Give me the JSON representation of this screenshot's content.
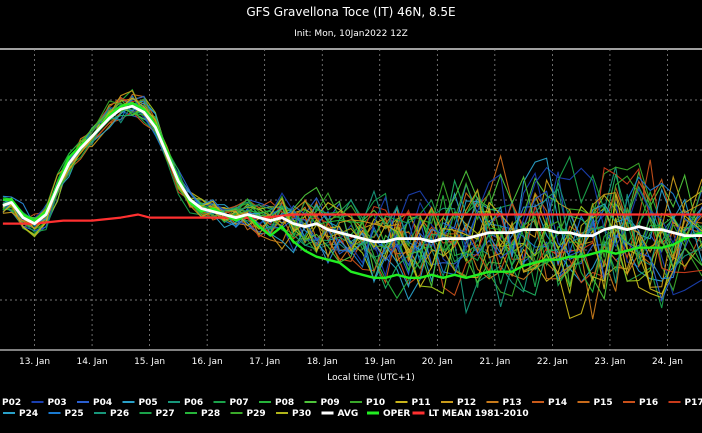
{
  "chart_data": {
    "type": "line",
    "title": "GFS Gravellona Toce (IT) 46N, 8.5E",
    "subtitle": "Init: Mon, 10Jan2022 12Z",
    "xlabel": "Local time (UTC+1)",
    "ylabel": "",
    "x_tick_labels": [
      "13. Jan",
      "14. Jan",
      "15. Jan",
      "16. Jan",
      "17. Jan",
      "18. Jan",
      "19. Jan",
      "20. Jan",
      "21. Jan",
      "22. Jan",
      "23. Jan",
      "24. Jan"
    ],
    "grid": true,
    "legend_position": "bottom",
    "legend_row1": [
      {
        "name": "P02",
        "color": "#1a3fb0"
      },
      {
        "name": "P03",
        "color": "#1a3fb0"
      },
      {
        "name": "P04",
        "color": "#2a5fd0"
      },
      {
        "name": "P05",
        "color": "#29a0c8"
      },
      {
        "name": "P06",
        "color": "#17967a"
      },
      {
        "name": "P07",
        "color": "#1aa24a"
      },
      {
        "name": "P08",
        "color": "#26b43a"
      },
      {
        "name": "P09",
        "color": "#4ec43a"
      },
      {
        "name": "P10",
        "color": "#3aa82a"
      },
      {
        "name": "P11",
        "color": "#c8b41a"
      },
      {
        "name": "P12",
        "color": "#c89a1a"
      },
      {
        "name": "P13",
        "color": "#c87a1a"
      },
      {
        "name": "P14",
        "color": "#c85a1a"
      },
      {
        "name": "P15",
        "color": "#c86a1a"
      },
      {
        "name": "P16",
        "color": "#c8501a"
      },
      {
        "name": "P17",
        "color": "#c83a1a"
      }
    ],
    "legend_row2": [
      {
        "name": "P24",
        "color": "#29a0c8"
      },
      {
        "name": "P25",
        "color": "#1a7ad0"
      },
      {
        "name": "P26",
        "color": "#17967a"
      },
      {
        "name": "P27",
        "color": "#1aa24a"
      },
      {
        "name": "P28",
        "color": "#26b43a"
      },
      {
        "name": "P29",
        "color": "#3aa82a"
      },
      {
        "name": "P30",
        "color": "#b0b41a"
      },
      {
        "name": "AVG",
        "color": "#ffffff"
      },
      {
        "name": "OPER",
        "color": "#22ee22"
      },
      {
        "name": "LT MEAN 1981-2010",
        "color": "#ff3030"
      }
    ],
    "x_range_days": [
      12.4,
      24.6
    ],
    "series": [
      {
        "name": "AVG",
        "color": "#ffffff",
        "width": 2.8,
        "values": [
          [
            12.45,
            0.48
          ],
          [
            12.6,
            0.49
          ],
          [
            12.8,
            0.44
          ],
          [
            13.0,
            0.42
          ],
          [
            13.2,
            0.45
          ],
          [
            13.4,
            0.54
          ],
          [
            13.6,
            0.62
          ],
          [
            13.8,
            0.67
          ],
          [
            14.0,
            0.71
          ],
          [
            14.3,
            0.77
          ],
          [
            14.5,
            0.8
          ],
          [
            14.7,
            0.81
          ],
          [
            14.9,
            0.79
          ],
          [
            15.1,
            0.74
          ],
          [
            15.3,
            0.65
          ],
          [
            15.5,
            0.56
          ],
          [
            15.7,
            0.5
          ],
          [
            15.9,
            0.47
          ],
          [
            16.1,
            0.46
          ],
          [
            16.3,
            0.45
          ],
          [
            16.5,
            0.44
          ],
          [
            16.7,
            0.45
          ],
          [
            16.9,
            0.44
          ],
          [
            17.1,
            0.43
          ],
          [
            17.3,
            0.44
          ],
          [
            17.5,
            0.42
          ],
          [
            17.7,
            0.41
          ],
          [
            17.9,
            0.42
          ],
          [
            18.1,
            0.4
          ],
          [
            18.3,
            0.39
          ],
          [
            18.5,
            0.38
          ],
          [
            18.7,
            0.37
          ],
          [
            18.9,
            0.36
          ],
          [
            19.1,
            0.36
          ],
          [
            19.3,
            0.37
          ],
          [
            19.5,
            0.37
          ],
          [
            19.7,
            0.37
          ],
          [
            19.9,
            0.36
          ],
          [
            20.1,
            0.37
          ],
          [
            20.3,
            0.37
          ],
          [
            20.5,
            0.37
          ],
          [
            20.7,
            0.38
          ],
          [
            20.9,
            0.39
          ],
          [
            21.1,
            0.39
          ],
          [
            21.3,
            0.39
          ],
          [
            21.5,
            0.4
          ],
          [
            21.7,
            0.4
          ],
          [
            21.9,
            0.4
          ],
          [
            22.1,
            0.39
          ],
          [
            22.3,
            0.39
          ],
          [
            22.5,
            0.38
          ],
          [
            22.7,
            0.38
          ],
          [
            22.9,
            0.4
          ],
          [
            23.1,
            0.41
          ],
          [
            23.3,
            0.4
          ],
          [
            23.5,
            0.41
          ],
          [
            23.7,
            0.4
          ],
          [
            23.9,
            0.4
          ],
          [
            24.1,
            0.39
          ],
          [
            24.3,
            0.38
          ],
          [
            24.6,
            0.38
          ]
        ]
      },
      {
        "name": "OPER",
        "color": "#22ee22",
        "width": 2.4,
        "values": [
          [
            12.45,
            0.5
          ],
          [
            12.6,
            0.5
          ],
          [
            12.8,
            0.45
          ],
          [
            13.0,
            0.43
          ],
          [
            13.2,
            0.46
          ],
          [
            13.4,
            0.55
          ],
          [
            13.6,
            0.64
          ],
          [
            13.8,
            0.68
          ],
          [
            14.0,
            0.71
          ],
          [
            14.3,
            0.78
          ],
          [
            14.5,
            0.81
          ],
          [
            14.7,
            0.82
          ],
          [
            14.9,
            0.8
          ],
          [
            15.1,
            0.75
          ],
          [
            15.3,
            0.66
          ],
          [
            15.5,
            0.57
          ],
          [
            15.7,
            0.49
          ],
          [
            15.9,
            0.46
          ],
          [
            16.1,
            0.47
          ],
          [
            16.3,
            0.45
          ],
          [
            16.5,
            0.43
          ],
          [
            16.7,
            0.45
          ],
          [
            16.9,
            0.41
          ],
          [
            17.1,
            0.38
          ],
          [
            17.3,
            0.41
          ],
          [
            17.5,
            0.36
          ],
          [
            17.7,
            0.33
          ],
          [
            17.9,
            0.31
          ],
          [
            18.1,
            0.3
          ],
          [
            18.3,
            0.29
          ],
          [
            18.5,
            0.26
          ],
          [
            18.7,
            0.25
          ],
          [
            18.9,
            0.24
          ],
          [
            19.1,
            0.24
          ],
          [
            19.3,
            0.25
          ],
          [
            19.5,
            0.24
          ],
          [
            19.7,
            0.24
          ],
          [
            19.9,
            0.25
          ],
          [
            20.1,
            0.24
          ],
          [
            20.3,
            0.25
          ],
          [
            20.5,
            0.24
          ],
          [
            20.7,
            0.25
          ],
          [
            20.9,
            0.26
          ],
          [
            21.1,
            0.26
          ],
          [
            21.3,
            0.26
          ],
          [
            21.5,
            0.28
          ],
          [
            21.7,
            0.29
          ],
          [
            21.9,
            0.3
          ],
          [
            22.1,
            0.3
          ],
          [
            22.3,
            0.31
          ],
          [
            22.5,
            0.31
          ],
          [
            22.7,
            0.32
          ],
          [
            22.9,
            0.33
          ],
          [
            23.1,
            0.32
          ],
          [
            23.3,
            0.33
          ],
          [
            23.5,
            0.34
          ],
          [
            23.7,
            0.34
          ],
          [
            23.9,
            0.34
          ],
          [
            24.1,
            0.35
          ],
          [
            24.3,
            0.37
          ],
          [
            24.6,
            0.39
          ]
        ]
      },
      {
        "name": "LT MEAN 1981-2010",
        "color": "#ff3030",
        "width": 2.2,
        "values": [
          [
            12.45,
            0.42
          ],
          [
            13.0,
            0.42
          ],
          [
            13.5,
            0.43
          ],
          [
            14.0,
            0.43
          ],
          [
            14.5,
            0.44
          ],
          [
            14.8,
            0.45
          ],
          [
            15.0,
            0.44
          ],
          [
            15.5,
            0.44
          ],
          [
            16.0,
            0.44
          ],
          [
            16.5,
            0.44
          ],
          [
            17.0,
            0.44
          ],
          [
            17.5,
            0.45
          ],
          [
            18.0,
            0.45
          ],
          [
            18.5,
            0.45
          ],
          [
            19.0,
            0.45
          ],
          [
            19.5,
            0.45
          ],
          [
            20.0,
            0.45
          ],
          [
            20.5,
            0.45
          ],
          [
            21.0,
            0.45
          ],
          [
            21.5,
            0.45
          ],
          [
            22.0,
            0.45
          ],
          [
            22.5,
            0.45
          ],
          [
            23.0,
            0.45
          ],
          [
            23.5,
            0.45
          ],
          [
            24.0,
            0.45
          ],
          [
            24.6,
            0.45
          ]
        ]
      }
    ],
    "members_count": 30
  }
}
